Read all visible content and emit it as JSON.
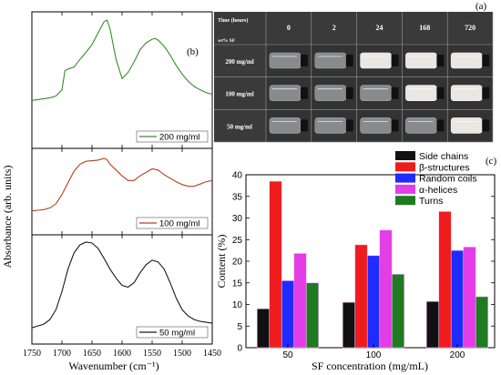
{
  "panel_a": {
    "label": "(a)",
    "header_time": "Time (hours)",
    "header_wt": "wt% SF",
    "times": [
      "0",
      "2",
      "24",
      "168",
      "720"
    ],
    "concentrations": [
      "200 mg/ml",
      "100 mg/ml",
      "50 mg/ml"
    ],
    "colors": {
      "grid_bg": "#2b2b2b",
      "vial_clear": "#cfd3d6",
      "vial_gel": "#f2f1ec"
    }
  },
  "chart_data": [
    {
      "type": "line",
      "panel": "(b)",
      "xlabel": "Wavenumber (cm⁻¹)",
      "ylabel": "Absorbance (arb. units)",
      "xlim": [
        1750,
        1450
      ],
      "xticks": [
        1750,
        1700,
        1650,
        1600,
        1550,
        1500,
        1450
      ],
      "grid": false,
      "series": [
        {
          "name": "200 mg/ml",
          "color": "#3a8a2e",
          "x": [
            1750,
            1740,
            1730,
            1720,
            1710,
            1700,
            1695,
            1690,
            1680,
            1670,
            1660,
            1650,
            1640,
            1630,
            1625,
            1620,
            1610,
            1600,
            1590,
            1580,
            1570,
            1560,
            1550,
            1545,
            1540,
            1530,
            1520,
            1510,
            1500,
            1490,
            1480,
            1470,
            1460,
            1450
          ],
          "y": [
            0.08,
            0.09,
            0.1,
            0.11,
            0.13,
            0.2,
            0.42,
            0.44,
            0.46,
            0.55,
            0.63,
            0.72,
            0.85,
            0.98,
            1.0,
            0.9,
            0.55,
            0.33,
            0.4,
            0.52,
            0.66,
            0.74,
            0.78,
            0.79,
            0.77,
            0.7,
            0.6,
            0.48,
            0.38,
            0.3,
            0.24,
            0.2,
            0.17,
            0.15
          ]
        },
        {
          "name": "100 mg/ml",
          "color": "#b5401f",
          "x": [
            1750,
            1740,
            1730,
            1720,
            1710,
            1700,
            1690,
            1680,
            1670,
            1660,
            1650,
            1640,
            1630,
            1625,
            1620,
            1610,
            1600,
            1590,
            1580,
            1570,
            1560,
            1550,
            1540,
            1530,
            1520,
            1510,
            1500,
            1490,
            1480,
            1470,
            1460,
            1450
          ],
          "y": [
            0.1,
            0.11,
            0.12,
            0.15,
            0.22,
            0.38,
            0.58,
            0.78,
            0.9,
            0.95,
            0.96,
            0.97,
            1.0,
            0.98,
            0.9,
            0.8,
            0.7,
            0.62,
            0.62,
            0.7,
            0.76,
            0.82,
            0.8,
            0.72,
            0.66,
            0.6,
            0.55,
            0.52,
            0.52,
            0.56,
            0.6,
            0.62
          ]
        },
        {
          "name": "50 mg/ml",
          "color": "#1a1a1a",
          "x": [
            1750,
            1740,
            1730,
            1720,
            1710,
            1700,
            1690,
            1680,
            1670,
            1660,
            1650,
            1640,
            1630,
            1620,
            1610,
            1600,
            1590,
            1580,
            1570,
            1560,
            1550,
            1540,
            1530,
            1520,
            1510,
            1500,
            1490,
            1480,
            1470,
            1460,
            1450
          ],
          "y": [
            0.05,
            0.07,
            0.09,
            0.14,
            0.25,
            0.45,
            0.7,
            0.88,
            0.97,
            1.0,
            0.99,
            0.93,
            0.82,
            0.7,
            0.6,
            0.52,
            0.5,
            0.55,
            0.66,
            0.75,
            0.8,
            0.78,
            0.7,
            0.55,
            0.38,
            0.25,
            0.18,
            0.14,
            0.12,
            0.11,
            0.1
          ]
        }
      ]
    },
    {
      "type": "bar",
      "panel": "(c)",
      "categories": [
        "50",
        "100",
        "200"
      ],
      "xlabel": "SF concentration (mg/mL)",
      "ylabel": "Content (%)",
      "ylim": [
        0,
        40
      ],
      "yticks": [
        0,
        5,
        10,
        15,
        20,
        25,
        30,
        35,
        40
      ],
      "legend_position": "top-right",
      "grid": false,
      "series": [
        {
          "name": "Side chains",
          "color": "#111111",
          "values": [
            9.0,
            10.5,
            10.7
          ]
        },
        {
          "name": "β-structures",
          "color": "#ee1c1c",
          "values": [
            38.5,
            23.8,
            31.5
          ]
        },
        {
          "name": "Random coils",
          "color": "#1f2bff",
          "values": [
            15.5,
            21.3,
            22.5
          ]
        },
        {
          "name": "α-helices",
          "color": "#e23de6",
          "values": [
            21.8,
            27.2,
            23.3
          ]
        },
        {
          "name": "Turns",
          "color": "#1f7a22",
          "values": [
            15.0,
            17.0,
            11.8
          ]
        }
      ]
    }
  ]
}
